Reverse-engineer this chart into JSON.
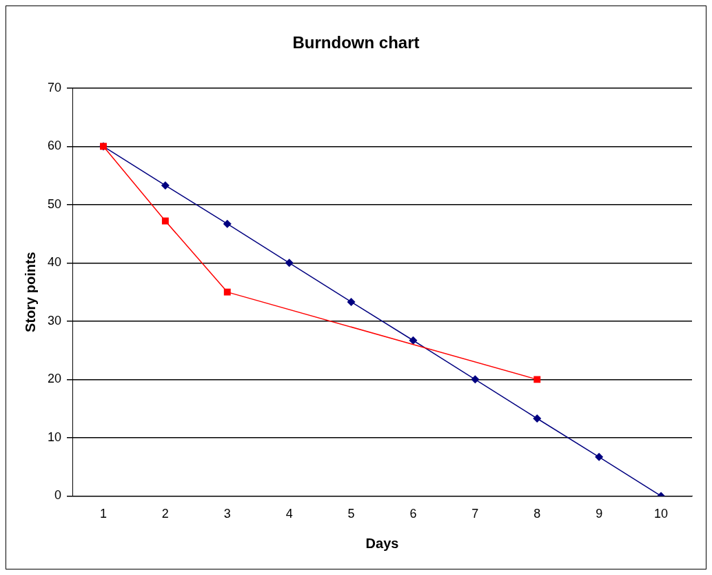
{
  "chart_data": {
    "type": "line",
    "title": "Burndown chart",
    "xlabel": "Days",
    "ylabel": "Story points",
    "categories": [
      "1",
      "2",
      "3",
      "4",
      "5",
      "6",
      "7",
      "8",
      "9",
      "10"
    ],
    "series": [
      {
        "color": "#000080",
        "marker": "diamond",
        "values": [
          60,
          53.3,
          46.7,
          40,
          33.3,
          26.7,
          20,
          13.3,
          6.7,
          0
        ]
      },
      {
        "color": "#ff0000",
        "marker": "square",
        "values": [
          60,
          47.2,
          35,
          null,
          null,
          null,
          null,
          20,
          null,
          null
        ]
      }
    ],
    "ylim": [
      0,
      70
    ],
    "yticks": [
      0,
      10,
      20,
      30,
      40,
      50,
      60,
      70
    ],
    "grid": "y",
    "legend": false
  }
}
